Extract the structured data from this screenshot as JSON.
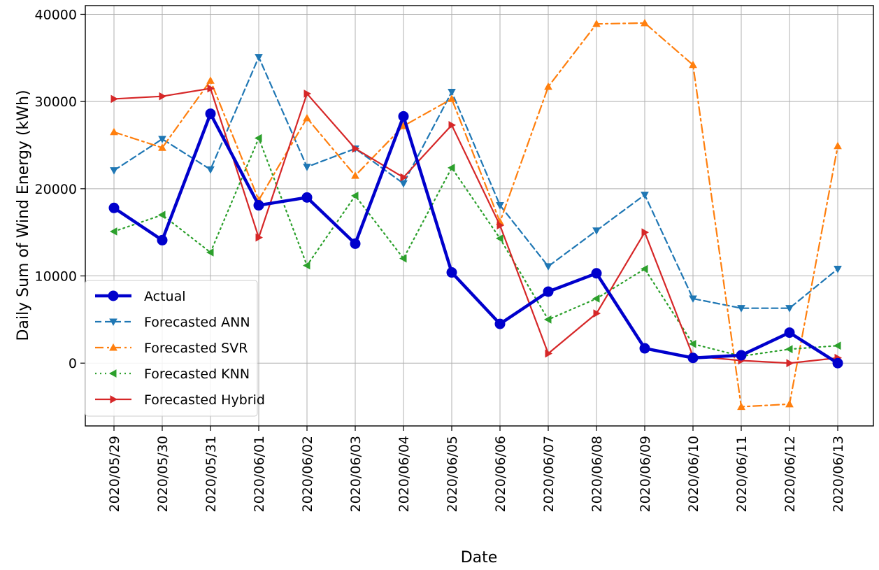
{
  "chart_data": {
    "type": "line",
    "title": "",
    "xlabel": "Date",
    "ylabel": "Daily Sum of Wind Energy (kWh)",
    "x": [
      "2020/05/29",
      "2020/05/30",
      "2020/05/31",
      "2020/06/01",
      "2020/06/02",
      "2020/06/03",
      "2020/06/04",
      "2020/06/05",
      "2020/06/06",
      "2020/06/07",
      "2020/06/08",
      "2020/06/09",
      "2020/06/10",
      "2020/06/11",
      "2020/06/12",
      "2020/06/13"
    ],
    "ylim": [
      -7200,
      41000
    ],
    "yticks": [
      0,
      10000,
      20000,
      30000,
      40000
    ],
    "grid": true,
    "legend_position": "lower-left",
    "series": [
      {
        "name": "Actual",
        "color": "#0000cc",
        "linestyle": "solid",
        "marker": "circle",
        "values": [
          17800,
          14100,
          28600,
          18100,
          19000,
          13700,
          28300,
          10400,
          4500,
          8200,
          10300,
          1700,
          600,
          900,
          3500,
          0
        ]
      },
      {
        "name": "Forecasted ANN",
        "color": "#1f77b4",
        "linestyle": "dashed",
        "marker": "triangle-down",
        "values": [
          22100,
          25700,
          22200,
          35100,
          22500,
          24600,
          20600,
          31100,
          18100,
          11100,
          15200,
          19300,
          7400,
          6300,
          6300,
          10800
        ]
      },
      {
        "name": "Forecasted SVR",
        "color": "#ff7f0e",
        "linestyle": "dashdot",
        "marker": "triangle-up",
        "values": [
          26500,
          24700,
          32400,
          18700,
          28100,
          21500,
          27200,
          30300,
          16200,
          31700,
          38900,
          39000,
          34200,
          -5000,
          -4700,
          24900
        ]
      },
      {
        "name": "Forecasted KNN",
        "color": "#2ca02c",
        "linestyle": "dotted",
        "marker": "triangle-left",
        "values": [
          15100,
          17000,
          12700,
          25800,
          11200,
          19200,
          12000,
          22400,
          14300,
          5000,
          7400,
          10800,
          2200,
          800,
          1600,
          2000
        ]
      },
      {
        "name": "Forecasted Hybrid",
        "color": "#d62728",
        "linestyle": "solid",
        "marker": "triangle-right",
        "values": [
          30300,
          30600,
          31500,
          14400,
          30900,
          24600,
          21300,
          27300,
          15800,
          1100,
          5700,
          15000,
          800,
          300,
          0,
          600
        ]
      }
    ]
  }
}
